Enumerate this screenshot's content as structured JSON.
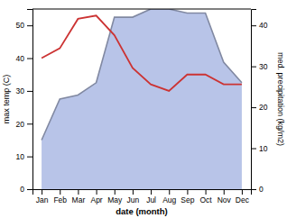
{
  "chart_data": {
    "type": "line",
    "categories": [
      "Jan",
      "Feb",
      "Mar",
      "Apr",
      "May",
      "Jun",
      "Jul",
      "Aug",
      "Sep",
      "Oct",
      "Nov",
      "Dec"
    ],
    "series": [
      {
        "type": "area",
        "axis": "y2",
        "color": "#b8c4e8",
        "values": [
          12,
          22,
          23,
          26,
          42,
          42,
          44,
          44,
          43,
          43,
          31,
          26
        ]
      },
      {
        "type": "line",
        "color": "#cc3333",
        "values": [
          40,
          43,
          52,
          53,
          47,
          37,
          32,
          30,
          35,
          35,
          32,
          32
        ]
      }
    ],
    "x_label": "date (month)",
    "y_label": "max temp (C)",
    "y2_label": "med. precipitation (kg/m2)",
    "ylim": [
      0,
      55
    ],
    "yticks": [
      0,
      10,
      20,
      30,
      40,
      50
    ],
    "y2lim": [
      0,
      44
    ],
    "y2ticks": [
      0,
      10,
      20,
      30,
      40
    ],
    "grid": false
  }
}
